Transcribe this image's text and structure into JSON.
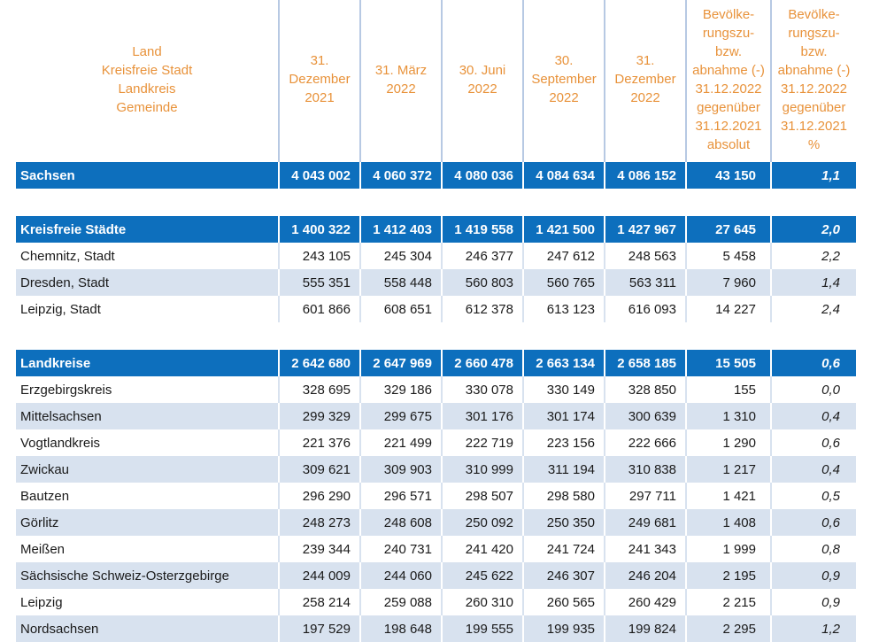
{
  "header": {
    "name_lines": [
      "Land",
      "Kreisfreie Stadt",
      "Landkreis",
      "Gemeinde"
    ],
    "columns": [
      [
        "31.",
        "Dezember",
        "2021"
      ],
      [
        "31. März",
        "2022"
      ],
      [
        "30. Juni",
        "2022"
      ],
      [
        "30.",
        "September",
        "2022"
      ],
      [
        "31.",
        "Dezember",
        "2022"
      ],
      [
        "Bevölke-",
        "rungszu-",
        "bzw.",
        "abnahme (-)",
        "31.12.2022",
        "gegenüber",
        "31.12.2021",
        "absolut"
      ],
      [
        "Bevölke-",
        "rungszu-",
        "bzw.",
        "abnahme (-)",
        "31.12.2022",
        "gegenüber",
        "31.12.2021",
        "%"
      ]
    ]
  },
  "rows": [
    {
      "name": "Sachsen",
      "v": [
        "4 043 002",
        "4 060 372",
        "4 080 036",
        "4 084 634",
        "4 086 152"
      ],
      "abs": "43 150",
      "pct": "1,1"
    },
    {
      "name": "Kreisfreie Städte",
      "v": [
        "1 400 322",
        "1 412 403",
        "1 419 558",
        "1 421 500",
        "1 427 967"
      ],
      "abs": "27 645",
      "pct": "2,0"
    },
    {
      "name": "Chemnitz, Stadt",
      "v": [
        "243 105",
        "245 304",
        "246 377",
        "247 612",
        "248 563"
      ],
      "abs": "5 458",
      "pct": "2,2"
    },
    {
      "name": "Dresden, Stadt",
      "v": [
        "555 351",
        "558 448",
        "560 803",
        "560 765",
        "563 311"
      ],
      "abs": "7 960",
      "pct": "1,4"
    },
    {
      "name": "Leipzig, Stadt",
      "v": [
        "601 866",
        "608 651",
        "612 378",
        "613 123",
        "616 093"
      ],
      "abs": "14 227",
      "pct": "2,4"
    },
    {
      "name": "Landkreise",
      "v": [
        "2 642 680",
        "2 647 969",
        "2 660 478",
        "2 663 134",
        "2 658 185"
      ],
      "abs": "15 505",
      "pct": "0,6"
    },
    {
      "name": "Erzgebirgskreis",
      "v": [
        "328 695",
        "329 186",
        "330 078",
        "330 149",
        "328 850"
      ],
      "abs": "155",
      "pct": "0,0"
    },
    {
      "name": "Mittelsachsen",
      "v": [
        "299 329",
        "299 675",
        "301 176",
        "301 174",
        "300 639"
      ],
      "abs": "1 310",
      "pct": "0,4"
    },
    {
      "name": "Vogtlandkreis",
      "v": [
        "221 376",
        "221 499",
        "222 719",
        "223 156",
        "222 666"
      ],
      "abs": "1 290",
      "pct": "0,6"
    },
    {
      "name": "Zwickau",
      "v": [
        "309 621",
        "309 903",
        "310 999",
        "311 194",
        "310 838"
      ],
      "abs": "1 217",
      "pct": "0,4"
    },
    {
      "name": "Bautzen",
      "v": [
        "296 290",
        "296 571",
        "298 507",
        "298 580",
        "297 711"
      ],
      "abs": "1 421",
      "pct": "0,5"
    },
    {
      "name": "Görlitz",
      "v": [
        "248 273",
        "248 608",
        "250 092",
        "250 350",
        "249 681"
      ],
      "abs": "1 408",
      "pct": "0,6"
    },
    {
      "name": "Meißen",
      "v": [
        "239 344",
        "240 731",
        "241 420",
        "241 724",
        "241 343"
      ],
      "abs": "1 999",
      "pct": "0,8"
    },
    {
      "name": "Sächsische Schweiz-Osterzgebirge",
      "v": [
        "244 009",
        "244 060",
        "245 622",
        "246 307",
        "246 204"
      ],
      "abs": "2 195",
      "pct": "0,9"
    },
    {
      "name": "Leipzig",
      "v": [
        "258 214",
        "259 088",
        "260 310",
        "260 565",
        "260 429"
      ],
      "abs": "2 215",
      "pct": "0,9"
    },
    {
      "name": "Nordsachsen",
      "v": [
        "197 529",
        "198 648",
        "199 555",
        "199 935",
        "199 824"
      ],
      "abs": "2 295",
      "pct": "1,2"
    }
  ]
}
